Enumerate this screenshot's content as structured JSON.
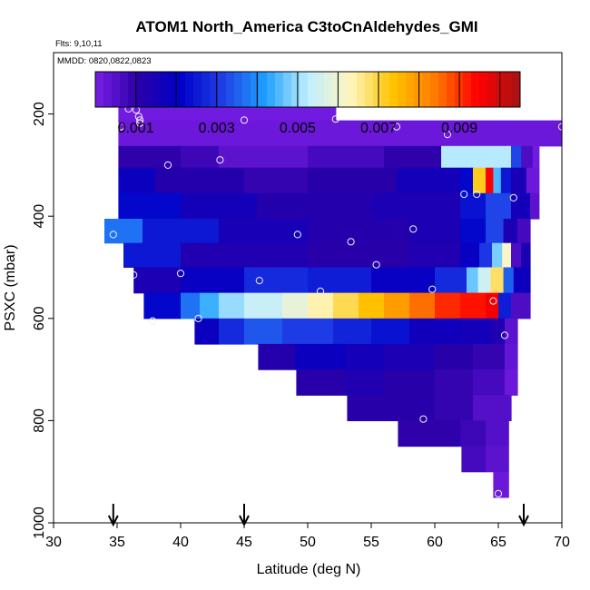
{
  "chart_data": {
    "type": "heatmap",
    "title": "ATOM1 North_America C3toCnAldehydes_GMI",
    "flights_note": "Flts: 9,10,11",
    "dates_note": "MMDD: 0820,0822,0823",
    "xlabel": "Latitude (deg N)",
    "ylabel": "PSXC (mbar)",
    "xlim": [
      30,
      70
    ],
    "ylim": [
      1000,
      80
    ],
    "x_ticks": [
      30,
      35,
      40,
      45,
      50,
      55,
      60,
      65,
      70
    ],
    "y_ticks": [
      200,
      400,
      600,
      800,
      1000
    ],
    "colorbar": {
      "range": [
        0,
        0.0105
      ],
      "tick_values": [
        0.001,
        0.003,
        0.005,
        0.007,
        0.009
      ],
      "tick_labels": [
        "0.001",
        "0.003",
        "0.005",
        "0.007",
        "0.009"
      ],
      "colors": [
        "#7a1ee6",
        "#2a00a8",
        "#0000c8",
        "#1f3fe6",
        "#1ea0ff",
        "#bfeeff",
        "#fff6c0",
        "#ffc400",
        "#ff7a00",
        "#ff0000",
        "#a41414"
      ]
    },
    "arrow_latitudes": [
      34.7,
      45.0,
      67.0
    ],
    "rows": [
      {
        "p": 180,
        "segments": [
          {
            "x0": 35.1,
            "x1": 52.2,
            "v": 0.0001
          }
        ]
      },
      {
        "p": 200,
        "segments": [
          {
            "x0": 35.1,
            "x1": 52.2,
            "v": 0.0001
          }
        ]
      },
      {
        "p": 225,
        "segments": [
          {
            "x0": 35.1,
            "x1": 70,
            "v": 0.0002
          }
        ]
      },
      {
        "p": 245,
        "segments": [
          {
            "x0": 35.1,
            "x1": 70,
            "v": 0.0002
          }
        ]
      },
      {
        "p": 280,
        "segments": [
          {
            "x0": 35.1,
            "x1": 40,
            "v": 0.001
          },
          {
            "x0": 40,
            "x1": 43,
            "v": 0.0008
          },
          {
            "x0": 43,
            "x1": 50,
            "v": 0.0004
          },
          {
            "x0": 50,
            "x1": 56,
            "v": 0.0007
          },
          {
            "x0": 56,
            "x1": 60.5,
            "v": 0.001
          },
          {
            "x0": 60.5,
            "x1": 66,
            "v": 0.0052
          },
          {
            "x0": 66,
            "x1": 66.8,
            "v": 0.0032
          },
          {
            "x0": 66.8,
            "x1": 67.7,
            "v": 0.0006
          },
          {
            "x0": 67.7,
            "x1": 68.2,
            "v": 0.0001
          }
        ]
      },
      {
        "p": 330,
        "segments": [
          {
            "x0": 35.1,
            "x1": 38,
            "v": 0.0018
          },
          {
            "x0": 38,
            "x1": 45,
            "v": 0.0012
          },
          {
            "x0": 45,
            "x1": 50,
            "v": 0.0009
          },
          {
            "x0": 50,
            "x1": 57,
            "v": 0.0011
          },
          {
            "x0": 57,
            "x1": 62,
            "v": 0.0016
          },
          {
            "x0": 62,
            "x1": 63,
            "v": 0.0022
          },
          {
            "x0": 63,
            "x1": 64,
            "v": 0.0072
          },
          {
            "x0": 64,
            "x1": 64.6,
            "v": 0.0095
          },
          {
            "x0": 64.6,
            "x1": 65.2,
            "v": 0.0045
          },
          {
            "x0": 65.2,
            "x1": 66,
            "v": 0.0025
          },
          {
            "x0": 66,
            "x1": 67.2,
            "v": 0.0015
          },
          {
            "x0": 67.2,
            "x1": 68.2,
            "v": 0.0002
          }
        ]
      },
      {
        "p": 380,
        "segments": [
          {
            "x0": 35.1,
            "x1": 40,
            "v": 0.0022
          },
          {
            "x0": 40,
            "x1": 46,
            "v": 0.0016
          },
          {
            "x0": 46,
            "x1": 55,
            "v": 0.0012
          },
          {
            "x0": 55,
            "x1": 62,
            "v": 0.0014
          },
          {
            "x0": 62,
            "x1": 64,
            "v": 0.0024
          },
          {
            "x0": 64,
            "x1": 66,
            "v": 0.0032
          },
          {
            "x0": 66,
            "x1": 67.5,
            "v": 0.0016
          },
          {
            "x0": 67.5,
            "x1": 68.2,
            "v": 0.0004
          }
        ]
      },
      {
        "p": 430,
        "segments": [
          {
            "x0": 34,
            "x1": 37,
            "v": 0.0037
          },
          {
            "x0": 37,
            "x1": 43,
            "v": 0.0025
          },
          {
            "x0": 43,
            "x1": 50,
            "v": 0.0015
          },
          {
            "x0": 50,
            "x1": 58,
            "v": 0.0012
          },
          {
            "x0": 58,
            "x1": 62,
            "v": 0.0014
          },
          {
            "x0": 62,
            "x1": 64,
            "v": 0.0022
          },
          {
            "x0": 64,
            "x1": 65.4,
            "v": 0.0032
          },
          {
            "x0": 65.4,
            "x1": 66.5,
            "v": 0.0014
          },
          {
            "x0": 66.5,
            "x1": 67.5,
            "v": 0.0007
          }
        ]
      },
      {
        "p": 475,
        "segments": [
          {
            "x0": 35.5,
            "x1": 40,
            "v": 0.0025
          },
          {
            "x0": 40,
            "x1": 50,
            "v": 0.0013
          },
          {
            "x0": 50,
            "x1": 58,
            "v": 0.0011
          },
          {
            "x0": 58,
            "x1": 62,
            "v": 0.0013
          },
          {
            "x0": 62,
            "x1": 63.5,
            "v": 0.0019
          },
          {
            "x0": 63.5,
            "x1": 64.5,
            "v": 0.003
          },
          {
            "x0": 64.5,
            "x1": 65.3,
            "v": 0.0048
          },
          {
            "x0": 65.3,
            "x1": 66,
            "v": 0.0062
          },
          {
            "x0": 66,
            "x1": 66.8,
            "v": 0.0006
          },
          {
            "x0": 66.8,
            "x1": 67.5,
            "v": 0.0014
          }
        ]
      },
      {
        "p": 525,
        "segments": [
          {
            "x0": 36.3,
            "x1": 40,
            "v": 0.0014
          },
          {
            "x0": 40,
            "x1": 45,
            "v": 0.0019
          },
          {
            "x0": 45,
            "x1": 50,
            "v": 0.0028
          },
          {
            "x0": 50,
            "x1": 55,
            "v": 0.0026
          },
          {
            "x0": 55,
            "x1": 60,
            "v": 0.0019
          },
          {
            "x0": 60,
            "x1": 62.5,
            "v": 0.0028
          },
          {
            "x0": 62.5,
            "x1": 63.4,
            "v": 0.0047
          },
          {
            "x0": 63.4,
            "x1": 64.4,
            "v": 0.0055
          },
          {
            "x0": 64.4,
            "x1": 65.4,
            "v": 0.0068
          },
          {
            "x0": 65.4,
            "x1": 66.2,
            "v": 0.0035
          },
          {
            "x0": 66.2,
            "x1": 67.5,
            "v": 0.0018
          }
        ]
      },
      {
        "p": 575,
        "segments": [
          {
            "x0": 37.1,
            "x1": 40,
            "v": 0.0022
          },
          {
            "x0": 40,
            "x1": 41.5,
            "v": 0.0037
          },
          {
            "x0": 41.5,
            "x1": 43,
            "v": 0.0044
          },
          {
            "x0": 43,
            "x1": 45,
            "v": 0.005
          },
          {
            "x0": 45,
            "x1": 48,
            "v": 0.0054
          },
          {
            "x0": 48,
            "x1": 50,
            "v": 0.0059
          },
          {
            "x0": 50,
            "x1": 52,
            "v": 0.0064
          },
          {
            "x0": 52,
            "x1": 54,
            "v": 0.0069
          },
          {
            "x0": 54,
            "x1": 56,
            "v": 0.0074
          },
          {
            "x0": 56,
            "x1": 58,
            "v": 0.0079
          },
          {
            "x0": 58,
            "x1": 60,
            "v": 0.0085
          },
          {
            "x0": 60,
            "x1": 62,
            "v": 0.0091
          },
          {
            "x0": 62,
            "x1": 64,
            "v": 0.0093
          },
          {
            "x0": 64,
            "x1": 65,
            "v": 0.0096
          },
          {
            "x0": 65,
            "x1": 66,
            "v": 0.0026
          },
          {
            "x0": 66,
            "x1": 67.5,
            "v": 0.0006
          }
        ]
      },
      {
        "p": 625,
        "segments": [
          {
            "x0": 41.1,
            "x1": 43,
            "v": 0.0018
          },
          {
            "x0": 43,
            "x1": 45,
            "v": 0.0028
          },
          {
            "x0": 45,
            "x1": 48,
            "v": 0.0034
          },
          {
            "x0": 48,
            "x1": 52,
            "v": 0.0031
          },
          {
            "x0": 52,
            "x1": 55,
            "v": 0.0027
          },
          {
            "x0": 55,
            "x1": 58,
            "v": 0.0024
          },
          {
            "x0": 58,
            "x1": 62,
            "v": 0.0017
          },
          {
            "x0": 62,
            "x1": 64.5,
            "v": 0.0016
          },
          {
            "x0": 64.5,
            "x1": 65.5,
            "v": 0.0013
          },
          {
            "x0": 65.5,
            "x1": 66.5,
            "v": 0.0004
          }
        ]
      },
      {
        "p": 675,
        "segments": [
          {
            "x0": 46.1,
            "x1": 49,
            "v": 0.0012
          },
          {
            "x0": 49,
            "x1": 53,
            "v": 0.0018
          },
          {
            "x0": 53,
            "x1": 56,
            "v": 0.0016
          },
          {
            "x0": 56,
            "x1": 60,
            "v": 0.0014
          },
          {
            "x0": 60,
            "x1": 63,
            "v": 0.0011
          },
          {
            "x0": 63,
            "x1": 65.5,
            "v": 0.0009
          },
          {
            "x0": 65.5,
            "x1": 66.5,
            "v": 0.0003
          }
        ]
      },
      {
        "p": 725,
        "segments": [
          {
            "x0": 49.1,
            "x1": 53,
            "v": 0.0011
          },
          {
            "x0": 53,
            "x1": 56,
            "v": 0.0013
          },
          {
            "x0": 56,
            "x1": 60,
            "v": 0.0011
          },
          {
            "x0": 60,
            "x1": 63,
            "v": 0.0009
          },
          {
            "x0": 63,
            "x1": 65.5,
            "v": 0.0007
          },
          {
            "x0": 65.5,
            "x1": 66.5,
            "v": 0.0002
          }
        ]
      },
      {
        "p": 775,
        "segments": [
          {
            "x0": 53.1,
            "x1": 60,
            "v": 0.0011
          },
          {
            "x0": 60,
            "x1": 63,
            "v": 0.0009
          },
          {
            "x0": 63,
            "x1": 66,
            "v": 0.0005
          }
        ]
      },
      {
        "p": 825,
        "segments": [
          {
            "x0": 57.1,
            "x1": 62,
            "v": 0.001
          },
          {
            "x0": 62,
            "x1": 64,
            "v": 0.0008
          },
          {
            "x0": 64,
            "x1": 65.8,
            "v": 0.0005
          }
        ]
      },
      {
        "p": 875,
        "segments": [
          {
            "x0": 62.1,
            "x1": 64,
            "v": 0.0007
          },
          {
            "x0": 64,
            "x1": 65.8,
            "v": 0.0004
          }
        ]
      },
      {
        "p": 925,
        "segments": [
          {
            "x0": 64.6,
            "x1": 65.8,
            "v": 0.0002
          }
        ]
      }
    ],
    "samples": [
      {
        "lat": 35.3,
        "p": 225
      },
      {
        "lat": 35.9,
        "p": 190
      },
      {
        "lat": 36.5,
        "p": 192
      },
      {
        "lat": 36.7,
        "p": 205
      },
      {
        "lat": 36.8,
        "p": 212
      },
      {
        "lat": 36.8,
        "p": 218
      },
      {
        "lat": 45.0,
        "p": 212
      },
      {
        "lat": 52.2,
        "p": 210
      },
      {
        "lat": 57.0,
        "p": 225
      },
      {
        "lat": 61.0,
        "p": 240
      },
      {
        "lat": 70.0,
        "p": 225
      },
      {
        "lat": 39.0,
        "p": 300
      },
      {
        "lat": 43.1,
        "p": 290
      },
      {
        "lat": 62.3,
        "p": 357
      },
      {
        "lat": 63.3,
        "p": 357
      },
      {
        "lat": 66.2,
        "p": 364
      },
      {
        "lat": 34.7,
        "p": 436
      },
      {
        "lat": 49.2,
        "p": 436
      },
      {
        "lat": 53.4,
        "p": 450
      },
      {
        "lat": 58.3,
        "p": 425
      },
      {
        "lat": 36.3,
        "p": 515
      },
      {
        "lat": 40.0,
        "p": 512
      },
      {
        "lat": 46.2,
        "p": 526
      },
      {
        "lat": 55.4,
        "p": 495
      },
      {
        "lat": 51.0,
        "p": 547
      },
      {
        "lat": 59.8,
        "p": 543
      },
      {
        "lat": 64.6,
        "p": 566
      },
      {
        "lat": 37.8,
        "p": 605
      },
      {
        "lat": 41.4,
        "p": 600
      },
      {
        "lat": 65.5,
        "p": 633
      },
      {
        "lat": 59.1,
        "p": 797
      },
      {
        "lat": 65.0,
        "p": 943
      }
    ]
  }
}
